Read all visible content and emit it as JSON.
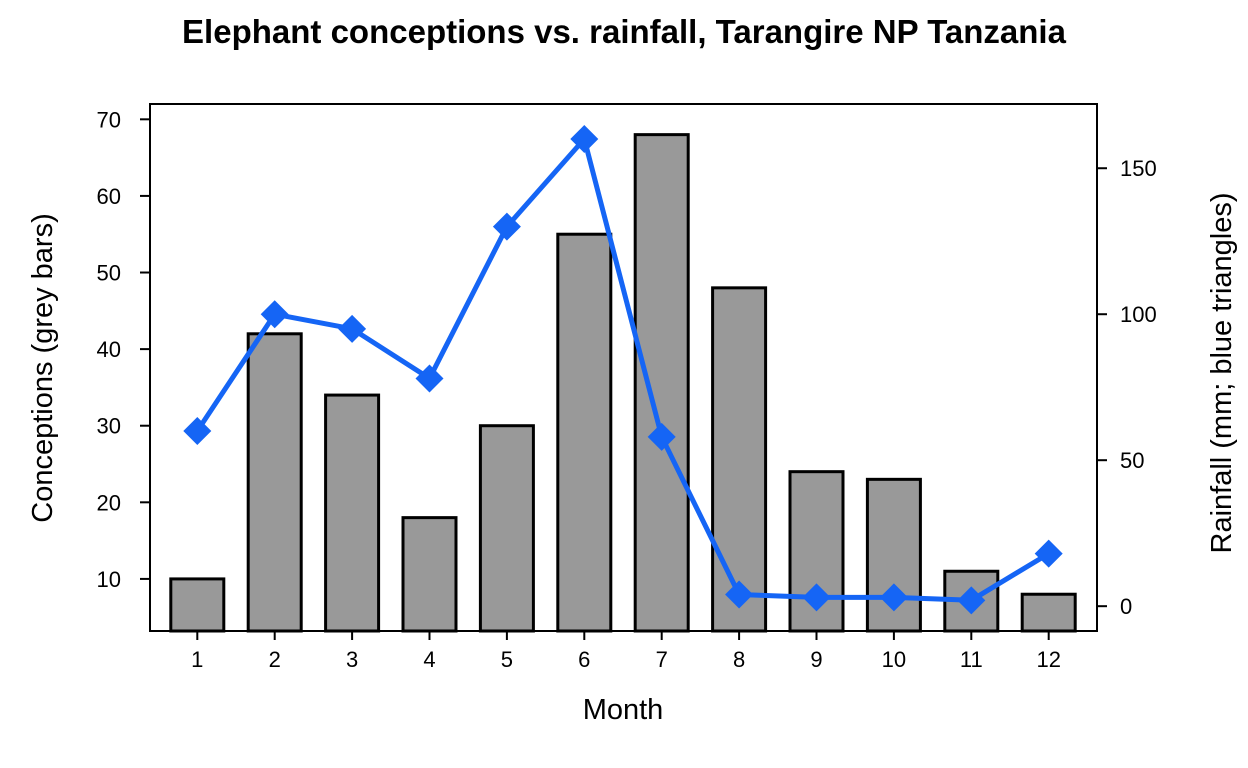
{
  "chart_data": {
    "type": "bar",
    "title": "Elephant conceptions vs. rainfall, Tarangire NP Tanzania",
    "xlabel": "Month",
    "ylabel": "Conceptions (grey bars)",
    "y2label": "Rainfall (mm; blue triangles)",
    "categories": [
      "1",
      "2",
      "3",
      "4",
      "5",
      "6",
      "7",
      "8",
      "9",
      "10",
      "11",
      "12"
    ],
    "series": [
      {
        "type": "bar",
        "axis": "left",
        "values": [
          10,
          42,
          34,
          18,
          30,
          55,
          68,
          48,
          24,
          23,
          11,
          8
        ]
      },
      {
        "type": "line",
        "axis": "right",
        "marker": "diamond",
        "values": [
          60,
          100,
          95,
          78,
          130,
          160,
          58,
          4,
          3,
          3,
          2,
          18
        ]
      }
    ],
    "ylim": [
      3.2,
      72
    ],
    "y2lim": [
      -8.5,
      172
    ],
    "yticks": [
      10,
      20,
      30,
      40,
      50,
      60,
      70
    ],
    "y2ticks": [
      0,
      50,
      100,
      150
    ],
    "grid": false,
    "legend": "none",
    "colors": {
      "bar_fill": "#999999",
      "bar_stroke": "#000000",
      "line": "#1565f5"
    }
  }
}
